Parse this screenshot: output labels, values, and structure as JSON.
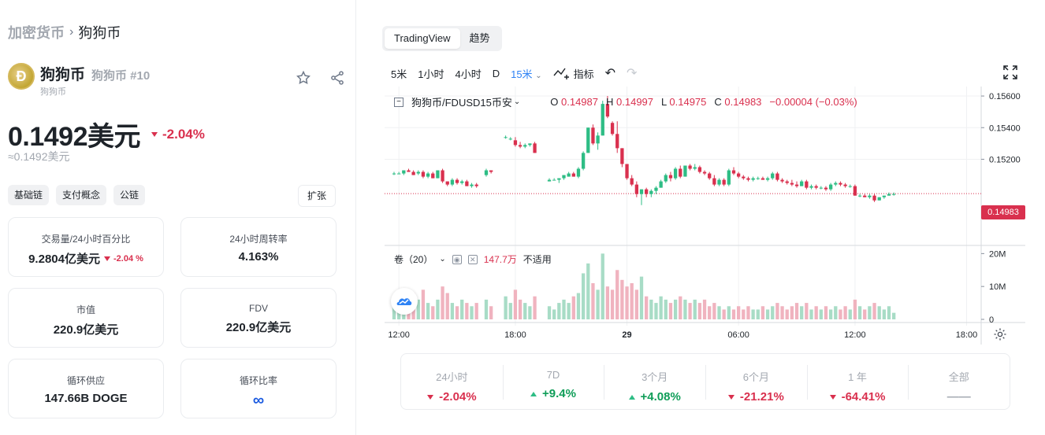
{
  "breadcrumb": {
    "root": "加密货币",
    "separator": "›",
    "current": "狗狗币"
  },
  "coin": {
    "logo_letter": "Ð",
    "name": "狗狗币",
    "rank": "狗狗币 #10",
    "subname": "狗狗币",
    "star_icon": "star-icon",
    "share_icon": "share-icon"
  },
  "price": {
    "main": "0.1492美元",
    "change": "-2.04%",
    "secondary": "≈0.1492美元",
    "direction": "down"
  },
  "tags": [
    "基础链",
    "支付概念",
    "公链"
  ],
  "expand_label": "扩张",
  "stats": {
    "volume": {
      "label": "交易量/24小时百分比",
      "value": "9.2804亿美元",
      "change": "-2.04 %"
    },
    "turnover": {
      "label": "24小时周转率",
      "value": "4.163%"
    },
    "market_cap": {
      "label": "市值",
      "value": "220.9亿美元"
    },
    "fdv": {
      "label": "FDV",
      "value": "220.9亿美元"
    },
    "circulating": {
      "label": "循环供应",
      "value": "147.66B DOGE"
    },
    "circ_ratio": {
      "label": "循环比率",
      "value": "∞"
    }
  },
  "chart_tabs": [
    "TradingView",
    "趋势"
  ],
  "toolbar": {
    "intervals": [
      "5米",
      "1小时",
      "4小时",
      "D"
    ],
    "active_interval": "15米",
    "indicators": "指标"
  },
  "legend": {
    "symbol": "狗狗币/FDUSD15币安",
    "open_key": "O",
    "open": "0.14987",
    "high_key": "H",
    "high": "0.14997",
    "low_key": "L",
    "low": "0.14975",
    "close_key": "C",
    "close": "0.14983",
    "change": "−0.00004 (−0.03%)"
  },
  "volume_legend": {
    "label": "卷（20）",
    "value": "147.7万",
    "na": "不适用"
  },
  "last_price": "0.14983",
  "colors": {
    "up": "#2ebd85",
    "down": "#d9304e",
    "accent": "#2f83f5"
  },
  "chart_data": {
    "type": "candlestick",
    "title": "",
    "y_ticks": [
      "0.15600",
      "0.15400",
      "0.15200"
    ],
    "volume_ticks": [
      "20M",
      "10M",
      "0"
    ],
    "x_ticks": [
      "12:00",
      "18:00",
      "29",
      "06:00",
      "12:00",
      "18:00"
    ],
    "last_price": 0.14983,
    "ylim": [
      0.1466,
      0.1566
    ],
    "x_tick_positions": [
      1,
      25,
      48,
      71,
      95,
      118
    ],
    "series": [
      [
        0,
        0.1511,
        0.1512,
        0.151,
        0.1511,
        6
      ],
      [
        1,
        0.1511,
        0.1512,
        0.1511,
        0.1511,
        4
      ],
      [
        2,
        0.1511,
        0.1513,
        0.151,
        0.1513,
        5
      ],
      [
        3,
        0.1513,
        0.1514,
        0.1512,
        0.1512,
        7
      ],
      [
        4,
        0.1512,
        0.1513,
        0.151,
        0.151,
        8
      ],
      [
        5,
        0.1511,
        0.1513,
        0.151,
        0.1512,
        6
      ],
      [
        6,
        0.1512,
        0.1513,
        0.1508,
        0.1509,
        9
      ],
      [
        7,
        0.1509,
        0.1512,
        0.1508,
        0.1511,
        5
      ],
      [
        8,
        0.1511,
        0.1512,
        0.1508,
        0.1508,
        4
      ],
      [
        9,
        0.1508,
        0.1513,
        0.1508,
        0.1513,
        6
      ],
      [
        10,
        0.1513,
        0.1514,
        0.1505,
        0.1506,
        10
      ],
      [
        11,
        0.1506,
        0.1506,
        0.1503,
        0.1504,
        8
      ],
      [
        12,
        0.1504,
        0.1508,
        0.1503,
        0.1507,
        5
      ],
      [
        13,
        0.1507,
        0.1508,
        0.1504,
        0.1505,
        4
      ],
      [
        14,
        0.1505,
        0.1507,
        0.1504,
        0.1506,
        6
      ],
      [
        15,
        0.1506,
        0.1507,
        0.1503,
        0.1503,
        5
      ],
      [
        16,
        0.1503,
        0.1505,
        0.1502,
        0.1504,
        4
      ],
      [
        17,
        0.1504,
        0.1505,
        0.1502,
        0.1503,
        5
      ],
      [
        19,
        0.151,
        0.1514,
        0.1509,
        0.1513,
        6
      ],
      [
        20,
        0.1513,
        0.1513,
        0.1511,
        0.1512,
        4
      ],
      [
        23,
        0.1534,
        0.1535,
        0.1533,
        0.1534,
        7
      ],
      [
        24,
        0.1533,
        0.1534,
        0.1532,
        0.1533,
        5
      ],
      [
        25,
        0.1532,
        0.1534,
        0.1528,
        0.1529,
        9
      ],
      [
        26,
        0.1529,
        0.1531,
        0.1527,
        0.1528,
        6
      ],
      [
        27,
        0.1528,
        0.153,
        0.1527,
        0.1529,
        5
      ],
      [
        28,
        0.1529,
        0.153,
        0.1528,
        0.153,
        4
      ],
      [
        29,
        0.153,
        0.1531,
        0.1524,
        0.1524,
        7
      ],
      [
        32,
        0.1506,
        0.1508,
        0.1506,
        0.1507,
        4
      ],
      [
        33,
        0.1507,
        0.1508,
        0.1507,
        0.1507,
        3
      ],
      [
        34,
        0.1507,
        0.1508,
        0.1505,
        0.1508,
        5
      ],
      [
        35,
        0.1508,
        0.151,
        0.1507,
        0.151,
        6
      ],
      [
        36,
        0.1509,
        0.1512,
        0.1509,
        0.1511,
        5
      ],
      [
        37,
        0.1511,
        0.1512,
        0.1509,
        0.1509,
        7
      ],
      [
        38,
        0.1509,
        0.1515,
        0.1508,
        0.1514,
        8
      ],
      [
        39,
        0.1514,
        0.1525,
        0.1513,
        0.1524,
        14
      ],
      [
        40,
        0.1524,
        0.154,
        0.1524,
        0.154,
        17
      ],
      [
        41,
        0.154,
        0.1542,
        0.1529,
        0.153,
        11
      ],
      [
        42,
        0.153,
        0.1537,
        0.1526,
        0.1535,
        9
      ],
      [
        43,
        0.1535,
        0.1557,
        0.1535,
        0.1555,
        20
      ],
      [
        44,
        0.1555,
        0.156,
        0.1546,
        0.1547,
        10
      ],
      [
        45,
        0.1543,
        0.1544,
        0.1535,
        0.1536,
        9
      ],
      [
        46,
        0.1536,
        0.1544,
        0.1524,
        0.1527,
        15
      ],
      [
        47,
        0.1527,
        0.1527,
        0.1515,
        0.1517,
        12
      ],
      [
        48,
        0.1517,
        0.1517,
        0.1507,
        0.1508,
        10
      ],
      [
        49,
        0.1508,
        0.151,
        0.1503,
        0.1504,
        11
      ],
      [
        50,
        0.1504,
        0.1506,
        0.1496,
        0.1498,
        9
      ],
      [
        51,
        0.1498,
        0.1501,
        0.1491,
        0.1501,
        13
      ],
      [
        52,
        0.1501,
        0.1502,
        0.1496,
        0.1498,
        7
      ],
      [
        53,
        0.1498,
        0.1501,
        0.1496,
        0.15,
        6
      ],
      [
        54,
        0.15,
        0.1503,
        0.1498,
        0.1502,
        5
      ],
      [
        55,
        0.1502,
        0.1507,
        0.1502,
        0.1506,
        7
      ],
      [
        56,
        0.1506,
        0.1511,
        0.1505,
        0.151,
        6
      ],
      [
        57,
        0.151,
        0.1512,
        0.1506,
        0.1508,
        5
      ],
      [
        58,
        0.1508,
        0.1515,
        0.1507,
        0.1514,
        6
      ],
      [
        59,
        0.1514,
        0.1516,
        0.1508,
        0.1509,
        7
      ],
      [
        60,
        0.1509,
        0.1516,
        0.1509,
        0.1516,
        6
      ],
      [
        61,
        0.1516,
        0.1517,
        0.1513,
        0.1514,
        5
      ],
      [
        62,
        0.1514,
        0.1517,
        0.1513,
        0.1515,
        6
      ],
      [
        63,
        0.1515,
        0.1516,
        0.1511,
        0.1512,
        5
      ],
      [
        64,
        0.1512,
        0.1513,
        0.151,
        0.1511,
        6
      ],
      [
        65,
        0.1511,
        0.1512,
        0.1507,
        0.1508,
        4
      ],
      [
        66,
        0.1508,
        0.151,
        0.1503,
        0.1504,
        5
      ],
      [
        67,
        0.1504,
        0.1508,
        0.1503,
        0.1507,
        4
      ],
      [
        68,
        0.1507,
        0.1508,
        0.1503,
        0.1504,
        3
      ],
      [
        69,
        0.1504,
        0.1514,
        0.1503,
        0.1513,
        4
      ],
      [
        70,
        0.1513,
        0.1515,
        0.151,
        0.1511,
        3
      ],
      [
        71,
        0.1511,
        0.1512,
        0.1508,
        0.1509,
        4
      ],
      [
        72,
        0.1509,
        0.151,
        0.1507,
        0.1508,
        3
      ],
      [
        73,
        0.1508,
        0.1509,
        0.1506,
        0.1507,
        4
      ],
      [
        74,
        0.1507,
        0.1509,
        0.1506,
        0.1508,
        3
      ],
      [
        75,
        0.1508,
        0.1509,
        0.1507,
        0.1508,
        3
      ],
      [
        76,
        0.1508,
        0.1509,
        0.1507,
        0.1507,
        4
      ],
      [
        77,
        0.1507,
        0.1509,
        0.1506,
        0.1508,
        3
      ],
      [
        78,
        0.1508,
        0.1512,
        0.1507,
        0.1511,
        4
      ],
      [
        79,
        0.1511,
        0.1512,
        0.1506,
        0.1507,
        5
      ],
      [
        80,
        0.1507,
        0.1508,
        0.1505,
        0.1506,
        4
      ],
      [
        81,
        0.1506,
        0.1507,
        0.1504,
        0.1505,
        3
      ],
      [
        82,
        0.1505,
        0.1507,
        0.1503,
        0.1504,
        4
      ],
      [
        83,
        0.1504,
        0.1506,
        0.1502,
        0.1503,
        5
      ],
      [
        84,
        0.1503,
        0.1507,
        0.1503,
        0.1506,
        4
      ],
      [
        85,
        0.1506,
        0.1507,
        0.1501,
        0.1502,
        5
      ],
      [
        86,
        0.1502,
        0.1504,
        0.1501,
        0.1503,
        3
      ],
      [
        87,
        0.1503,
        0.1504,
        0.1501,
        0.1502,
        4
      ],
      [
        88,
        0.1502,
        0.1503,
        0.1501,
        0.1502,
        3
      ],
      [
        89,
        0.1502,
        0.1503,
        0.15,
        0.1501,
        4
      ],
      [
        90,
        0.1501,
        0.1505,
        0.15,
        0.1504,
        3
      ],
      [
        91,
        0.1504,
        0.1506,
        0.1503,
        0.1505,
        4
      ],
      [
        92,
        0.1505,
        0.1506,
        0.1503,
        0.1504,
        3
      ],
      [
        93,
        0.1504,
        0.1505,
        0.1502,
        0.1503,
        4
      ],
      [
        94,
        0.1503,
        0.1504,
        0.1502,
        0.1503,
        3
      ],
      [
        95,
        0.1503,
        0.1504,
        0.1497,
        0.1497,
        6
      ],
      [
        96,
        0.1497,
        0.1498,
        0.1496,
        0.1497,
        4
      ],
      [
        97,
        0.1497,
        0.1498,
        0.1496,
        0.1496,
        3
      ],
      [
        98,
        0.1496,
        0.1498,
        0.1495,
        0.1497,
        4
      ],
      [
        99,
        0.1497,
        0.1498,
        0.1493,
        0.1494,
        5
      ],
      [
        100,
        0.1494,
        0.1496,
        0.1494,
        0.1496,
        4
      ],
      [
        101,
        0.1496,
        0.1497,
        0.1495,
        0.1497,
        3
      ],
      [
        102,
        0.1497,
        0.1499,
        0.1497,
        0.1498,
        4
      ],
      [
        103,
        0.1498,
        0.1499,
        0.1497,
        0.1498,
        2
      ]
    ]
  },
  "performance": [
    {
      "label": "24小时",
      "value": "-2.04%",
      "dir": "down"
    },
    {
      "label": "7D",
      "value": "+9.4%",
      "dir": "up"
    },
    {
      "label": "3个月",
      "value": "+4.08%",
      "dir": "up"
    },
    {
      "label": "6个月",
      "value": "-21.21%",
      "dir": "down"
    },
    {
      "label": "1 年",
      "value": "-64.41%",
      "dir": "down"
    },
    {
      "label": "全部",
      "value": "——",
      "dir": "none"
    }
  ]
}
